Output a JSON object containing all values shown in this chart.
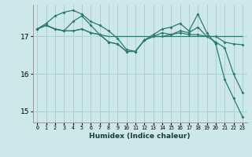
{
  "xlabel": "Humidex (Indice chaleur)",
  "bg_color": "#cce8e8",
  "grid_color": "#aad0d0",
  "line_color": "#2a7a70",
  "xlim": [
    -0.5,
    23.5
  ],
  "ylim": [
    14.7,
    17.85
  ],
  "yticks": [
    15,
    16,
    17
  ],
  "xticks": [
    0,
    1,
    2,
    3,
    4,
    5,
    6,
    7,
    8,
    9,
    10,
    11,
    12,
    13,
    14,
    15,
    16,
    17,
    18,
    19,
    20,
    21,
    22,
    23
  ],
  "series": [
    {
      "y": [
        17.2,
        17.3,
        17.2,
        17.15,
        17.15,
        17.2,
        17.1,
        17.05,
        17.0,
        17.0,
        17.0,
        17.0,
        17.0,
        17.0,
        17.0,
        17.0,
        17.0,
        17.0,
        17.0,
        17.0,
        17.0,
        17.0,
        17.0,
        17.0
      ],
      "marker": false,
      "lw": 0.9
    },
    {
      "y": [
        17.2,
        17.35,
        17.55,
        17.65,
        17.7,
        17.6,
        17.4,
        17.3,
        17.15,
        16.95,
        16.65,
        16.6,
        16.9,
        17.05,
        17.2,
        17.25,
        17.35,
        17.15,
        17.6,
        17.1,
        16.8,
        15.85,
        15.35,
        14.85
      ],
      "marker": true,
      "lw": 0.9
    },
    {
      "y": [
        17.2,
        17.3,
        17.2,
        17.15,
        17.4,
        17.55,
        17.3,
        17.05,
        16.85,
        16.8,
        16.6,
        16.6,
        16.9,
        17.0,
        17.1,
        17.05,
        17.15,
        17.1,
        17.25,
        17.0,
        17.0,
        16.85,
        16.8,
        16.78
      ],
      "marker": true,
      "lw": 0.9
    },
    {
      "y": [
        17.2,
        17.3,
        17.2,
        17.15,
        17.15,
        17.2,
        17.1,
        17.05,
        16.85,
        16.8,
        16.6,
        16.6,
        16.9,
        17.0,
        17.0,
        17.05,
        17.1,
        17.05,
        17.05,
        17.0,
        16.85,
        16.7,
        16.0,
        15.5
      ],
      "marker": true,
      "lw": 0.9
    }
  ]
}
